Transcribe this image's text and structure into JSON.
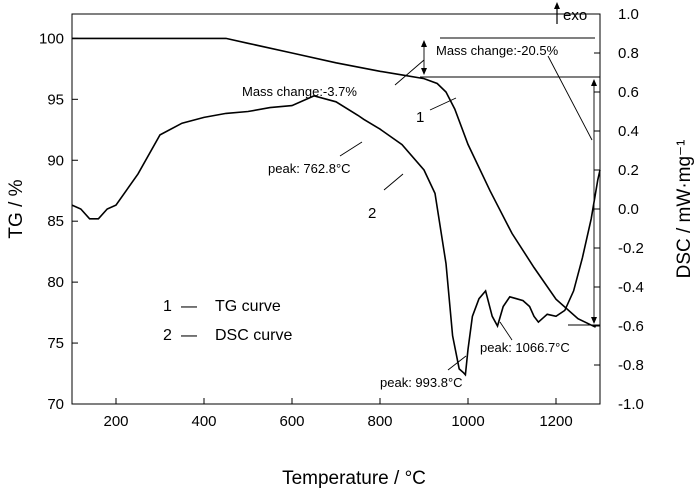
{
  "chart_data": {
    "type": "line",
    "xlabel": "Temperature / °C",
    "ylabel_left": "TG / %",
    "ylabel_right": "DSC / mW·mg⁻¹",
    "xlim": [
      100,
      1300
    ],
    "ylim_left": [
      70,
      102
    ],
    "ylim_right": [
      -1.0,
      1.0
    ],
    "x_ticks": [
      200,
      400,
      600,
      800,
      1000,
      1200
    ],
    "y_ticks_left": [
      70,
      75,
      80,
      85,
      90,
      95,
      100
    ],
    "y_ticks_right": [
      "1.0",
      "0.8",
      "0.6",
      "0.4",
      "0.2",
      "0.0",
      "-0.2",
      "-0.4",
      "-0.6",
      "-0.8",
      "-1.0"
    ],
    "exo_label": "exo",
    "series": [
      {
        "name": "TG curve",
        "curve_id": "1",
        "axis": "left",
        "x": [
          100,
          200,
          300,
          400,
          450,
          500,
          600,
          700,
          800,
          850,
          900,
          930,
          950,
          970,
          1000,
          1050,
          1100,
          1150,
          1200,
          1250,
          1290
        ],
        "y": [
          100.0,
          100.0,
          100.0,
          100.0,
          100.0,
          99.6,
          98.8,
          98.0,
          97.3,
          97.0,
          96.7,
          96.3,
          95.6,
          94.2,
          91.3,
          87.5,
          84.0,
          81.2,
          78.6,
          77.0,
          76.3
        ]
      },
      {
        "name": "DSC curve",
        "curve_id": "2",
        "axis": "right",
        "x": [
          100,
          120,
          140,
          160,
          180,
          200,
          250,
          300,
          350,
          400,
          450,
          500,
          550,
          600,
          650,
          700,
          750,
          763,
          800,
          850,
          900,
          925,
          950,
          965,
          980,
          990,
          994,
          1000,
          1010,
          1025,
          1040,
          1055,
          1067,
          1080,
          1095,
          1110,
          1125,
          1140,
          1150,
          1160,
          1170,
          1180,
          1200,
          1220,
          1240,
          1260,
          1280,
          1295,
          1300
        ],
        "y": [
          0.02,
          0.0,
          -0.05,
          -0.05,
          0.0,
          0.02,
          0.18,
          0.38,
          0.44,
          0.47,
          0.49,
          0.5,
          0.52,
          0.53,
          0.58,
          0.55,
          0.48,
          0.46,
          0.41,
          0.33,
          0.2,
          0.08,
          -0.28,
          -0.65,
          -0.82,
          -0.84,
          -0.85,
          -0.72,
          -0.55,
          -0.46,
          -0.42,
          -0.55,
          -0.6,
          -0.5,
          -0.45,
          -0.46,
          -0.47,
          -0.5,
          -0.55,
          -0.58,
          -0.56,
          -0.54,
          -0.55,
          -0.52,
          -0.42,
          -0.25,
          -0.05,
          0.15,
          0.2
        ]
      }
    ],
    "annotations": [
      {
        "text": "Mass change:-3.7%"
      },
      {
        "text": "Mass change:-20.5%"
      },
      {
        "text": "peak: 762.8°C"
      },
      {
        "text": "peak: 993.8°C"
      },
      {
        "text": "peak: 1066.7°C"
      }
    ],
    "legend": {
      "items": [
        {
          "number": "1",
          "dash": "—",
          "label": "TG curve"
        },
        {
          "number": "2",
          "dash": "—",
          "label": "DSC curve"
        }
      ]
    }
  }
}
